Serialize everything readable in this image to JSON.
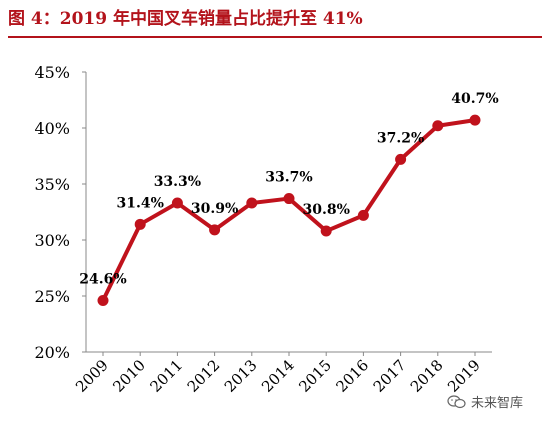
{
  "figure_title": "图 4：2019 年中国叉车销量占比提升至 41%",
  "watermark": "未来智库",
  "chart_data": {
    "type": "line",
    "categories": [
      "2009",
      "2010",
      "2011",
      "2012",
      "2013",
      "2014",
      "2015",
      "2016",
      "2017",
      "2018",
      "2019"
    ],
    "values": [
      24.6,
      31.4,
      33.3,
      30.9,
      33.3,
      33.7,
      30.8,
      32.2,
      37.2,
      40.2,
      40.7
    ],
    "data_labels": [
      {
        "index": 0,
        "text": "24.6%"
      },
      {
        "index": 1,
        "text": "31.4%"
      },
      {
        "index": 2,
        "text": "33.3%"
      },
      {
        "index": 3,
        "text": "30.9%"
      },
      {
        "index": 5,
        "text": "33.7%"
      },
      {
        "index": 6,
        "text": "30.8%"
      },
      {
        "index": 8,
        "text": "37.2%"
      },
      {
        "index": 10,
        "text": "40.7%"
      }
    ],
    "y_ticks": [
      "20%",
      "25%",
      "30%",
      "35%",
      "40%",
      "45%"
    ],
    "ylim": [
      20,
      45
    ],
    "title": "",
    "xlabel": "",
    "ylabel": "",
    "grid": false,
    "colors": {
      "line": "#c0121c",
      "marker": "#c0121c",
      "axis": "#888888",
      "text": "#000000"
    }
  }
}
